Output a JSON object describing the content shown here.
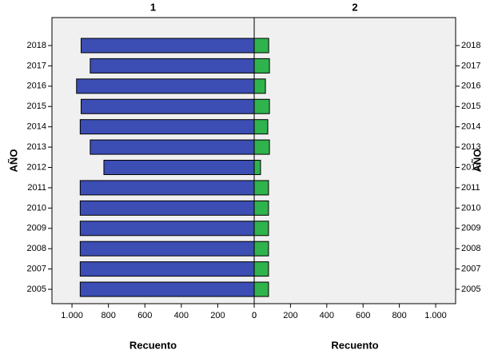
{
  "chart_data": [
    {
      "type": "bar",
      "orientation": "horizontal",
      "title": "1",
      "categories": [
        "2018",
        "2017",
        "2016",
        "2015",
        "2014",
        "2013",
        "2012",
        "2011",
        "2010",
        "2009",
        "2008",
        "2007",
        "2005"
      ],
      "values": [
        950,
        900,
        975,
        950,
        955,
        900,
        825,
        955,
        955,
        955,
        955,
        955,
        955
      ],
      "color": "#3c4db3",
      "xlim": [
        1110,
        0
      ],
      "xticks": [
        {
          "value": 1000,
          "label": "1.000"
        },
        800,
        600,
        400,
        200,
        0
      ],
      "xlabel": "Recuento",
      "ylabel": "AÑO",
      "y_axis_side": "left"
    },
    {
      "type": "bar",
      "orientation": "horizontal",
      "title": "2",
      "categories": [
        "2018",
        "2017",
        "2016",
        "2015",
        "2014",
        "2013",
        "2012",
        "2011",
        "2010",
        "2009",
        "2008",
        "2007",
        "2005"
      ],
      "values": [
        80,
        84,
        62,
        84,
        75,
        84,
        35,
        79,
        79,
        79,
        79,
        79,
        79
      ],
      "color": "#2fb34c",
      "xlim": [
        0,
        1110
      ],
      "xticks": [
        0,
        200,
        400,
        600,
        800,
        {
          "value": 1000,
          "label": "1.000"
        }
      ],
      "xlabel": "Recuento",
      "ylabel": "AÑO",
      "y_axis_side": "right"
    }
  ]
}
